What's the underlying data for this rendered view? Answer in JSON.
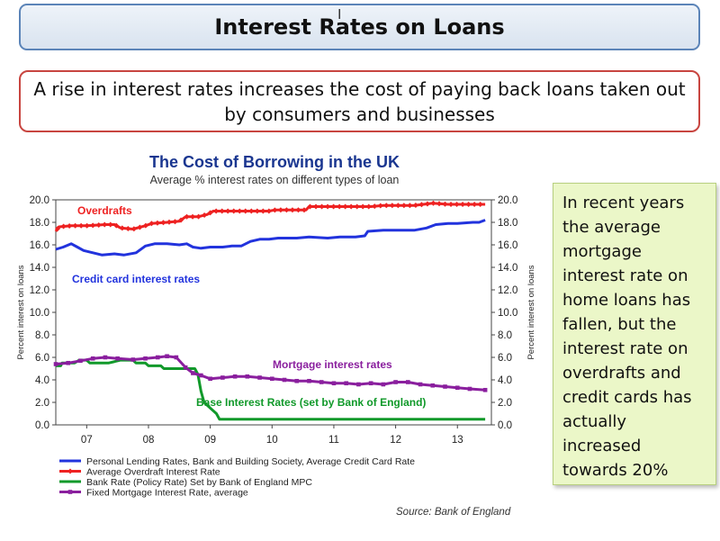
{
  "slide": {
    "title": "Interest Rates on Loans",
    "subtitle": "A rise in interest rates increases the cost of paying back loans taken out by consumers and businesses",
    "note": "In recent years the average mortgage interest rate on home loans has fallen, but the interest rate on overdrafts and credit cards has actually increased towards 20%",
    "source": "Source: Bank of England"
  },
  "chart_data": {
    "type": "line",
    "title": "The Cost of Borrowing in the UK",
    "subtitle": "Average % interest rates on different types of loan",
    "ylabel_left": "Percent interest on loans",
    "ylabel_right": "Percent interest on loans",
    "ylim": [
      0,
      20
    ],
    "yticks": [
      "0.0",
      "2.0",
      "4.0",
      "6.0",
      "8.0",
      "10.0",
      "12.0",
      "14.0",
      "16.0",
      "18.0",
      "20.0"
    ],
    "xlim": [
      2006.5,
      2013.55
    ],
    "xticks": [
      {
        "label": "07",
        "x": 2007
      },
      {
        "label": "08",
        "x": 2008
      },
      {
        "label": "09",
        "x": 2009
      },
      {
        "label": "10",
        "x": 2010
      },
      {
        "label": "11",
        "x": 2011
      },
      {
        "label": "12",
        "x": 2012
      },
      {
        "label": "13",
        "x": 2013
      }
    ],
    "grid": false,
    "legend_position": "bottom",
    "series": [
      {
        "name": "Personal Lending Rates, Bank and Building Society, Average Credit Card Rate",
        "annotation": "Credit card interest rates",
        "color": "#2233dd",
        "marker": "none",
        "points": [
          [
            2006.5,
            15.6
          ],
          [
            2006.62,
            15.8
          ],
          [
            2006.75,
            16.1
          ],
          [
            2006.85,
            15.8
          ],
          [
            2006.95,
            15.5
          ],
          [
            2007.1,
            15.3
          ],
          [
            2007.25,
            15.1
          ],
          [
            2007.45,
            15.2
          ],
          [
            2007.6,
            15.1
          ],
          [
            2007.8,
            15.3
          ],
          [
            2007.95,
            15.9
          ],
          [
            2008.1,
            16.1
          ],
          [
            2008.3,
            16.1
          ],
          [
            2008.5,
            16.0
          ],
          [
            2008.62,
            16.1
          ],
          [
            2008.72,
            15.8
          ],
          [
            2008.85,
            15.7
          ],
          [
            2009.0,
            15.8
          ],
          [
            2009.2,
            15.8
          ],
          [
            2009.35,
            15.9
          ],
          [
            2009.5,
            15.9
          ],
          [
            2009.65,
            16.3
          ],
          [
            2009.8,
            16.5
          ],
          [
            2009.95,
            16.5
          ],
          [
            2010.1,
            16.6
          ],
          [
            2010.4,
            16.6
          ],
          [
            2010.6,
            16.7
          ],
          [
            2010.9,
            16.6
          ],
          [
            2011.1,
            16.7
          ],
          [
            2011.35,
            16.7
          ],
          [
            2011.5,
            16.8
          ],
          [
            2011.55,
            17.2
          ],
          [
            2011.8,
            17.3
          ],
          [
            2012.1,
            17.3
          ],
          [
            2012.3,
            17.3
          ],
          [
            2012.5,
            17.5
          ],
          [
            2012.65,
            17.8
          ],
          [
            2012.85,
            17.9
          ],
          [
            2013.0,
            17.9
          ],
          [
            2013.25,
            18.0
          ],
          [
            2013.35,
            18.0
          ],
          [
            2013.45,
            18.2
          ]
        ]
      },
      {
        "name": "Average Overdraft Interest Rate",
        "annotation": "Overdrafts",
        "color": "#ee2222",
        "marker": "diamond",
        "points": [
          [
            2006.5,
            17.2
          ],
          [
            2006.55,
            17.6
          ],
          [
            2006.75,
            17.7
          ],
          [
            2007.0,
            17.7
          ],
          [
            2007.3,
            17.8
          ],
          [
            2007.45,
            17.8
          ],
          [
            2007.55,
            17.5
          ],
          [
            2007.75,
            17.4
          ],
          [
            2007.95,
            17.7
          ],
          [
            2008.05,
            17.9
          ],
          [
            2008.3,
            18.0
          ],
          [
            2008.5,
            18.1
          ],
          [
            2008.6,
            18.5
          ],
          [
            2008.8,
            18.5
          ],
          [
            2008.95,
            18.7
          ],
          [
            2009.05,
            19.0
          ],
          [
            2009.4,
            19.0
          ],
          [
            2009.7,
            19.0
          ],
          [
            2009.95,
            19.0
          ],
          [
            2010.05,
            19.1
          ],
          [
            2010.4,
            19.1
          ],
          [
            2010.55,
            19.1
          ],
          [
            2010.6,
            19.4
          ],
          [
            2010.9,
            19.4
          ],
          [
            2011.1,
            19.4
          ],
          [
            2011.3,
            19.4
          ],
          [
            2011.6,
            19.4
          ],
          [
            2011.8,
            19.5
          ],
          [
            2012.1,
            19.5
          ],
          [
            2012.3,
            19.5
          ],
          [
            2012.45,
            19.6
          ],
          [
            2012.6,
            19.7
          ],
          [
            2012.85,
            19.6
          ],
          [
            2013.1,
            19.6
          ],
          [
            2013.3,
            19.6
          ],
          [
            2013.45,
            19.6
          ]
        ]
      },
      {
        "name": "Bank Rate (Policy Rate) Set by Bank of England MPC",
        "annotation": "Base Interest Rates (set by Bank of England)",
        "color": "#11992a",
        "marker": "none",
        "points": [
          [
            2006.5,
            5.25
          ],
          [
            2006.58,
            5.25
          ],
          [
            2006.6,
            5.5
          ],
          [
            2006.8,
            5.5
          ],
          [
            2006.88,
            5.75
          ],
          [
            2007.0,
            5.75
          ],
          [
            2007.05,
            5.5
          ],
          [
            2007.15,
            5.5
          ],
          [
            2007.35,
            5.5
          ],
          [
            2007.55,
            5.75
          ],
          [
            2007.75,
            5.75
          ],
          [
            2007.8,
            5.5
          ],
          [
            2007.95,
            5.5
          ],
          [
            2008.0,
            5.25
          ],
          [
            2008.2,
            5.25
          ],
          [
            2008.25,
            5.0
          ],
          [
            2008.75,
            5.0
          ],
          [
            2008.8,
            4.5
          ],
          [
            2008.85,
            3.0
          ],
          [
            2008.9,
            2.0
          ],
          [
            2009.0,
            1.5
          ],
          [
            2009.1,
            1.0
          ],
          [
            2009.15,
            0.5
          ],
          [
            2009.4,
            0.5
          ],
          [
            2010.0,
            0.5
          ],
          [
            2011.0,
            0.5
          ],
          [
            2012.0,
            0.5
          ],
          [
            2013.0,
            0.5
          ],
          [
            2013.45,
            0.5
          ]
        ]
      },
      {
        "name": "Fixed Mortgage Interest Rate, average",
        "annotation": "Mortgage interest rates",
        "color": "#8a1f9e",
        "marker": "square",
        "points": [
          [
            2006.5,
            5.4
          ],
          [
            2006.7,
            5.5
          ],
          [
            2006.9,
            5.7
          ],
          [
            2007.1,
            5.9
          ],
          [
            2007.3,
            6.0
          ],
          [
            2007.5,
            5.9
          ],
          [
            2007.75,
            5.8
          ],
          [
            2007.95,
            5.9
          ],
          [
            2008.15,
            6.0
          ],
          [
            2008.3,
            6.1
          ],
          [
            2008.45,
            6.0
          ],
          [
            2008.6,
            5.1
          ],
          [
            2008.72,
            4.6
          ],
          [
            2008.85,
            4.4
          ],
          [
            2009.0,
            4.1
          ],
          [
            2009.2,
            4.2
          ],
          [
            2009.4,
            4.3
          ],
          [
            2009.6,
            4.3
          ],
          [
            2009.8,
            4.2
          ],
          [
            2010.0,
            4.1
          ],
          [
            2010.2,
            4.0
          ],
          [
            2010.4,
            3.9
          ],
          [
            2010.6,
            3.9
          ],
          [
            2010.8,
            3.8
          ],
          [
            2011.0,
            3.7
          ],
          [
            2011.2,
            3.7
          ],
          [
            2011.4,
            3.6
          ],
          [
            2011.6,
            3.7
          ],
          [
            2011.8,
            3.6
          ],
          [
            2012.0,
            3.8
          ],
          [
            2012.2,
            3.8
          ],
          [
            2012.4,
            3.6
          ],
          [
            2012.6,
            3.5
          ],
          [
            2012.8,
            3.4
          ],
          [
            2013.0,
            3.3
          ],
          [
            2013.2,
            3.2
          ],
          [
            2013.45,
            3.1
          ]
        ]
      }
    ]
  }
}
